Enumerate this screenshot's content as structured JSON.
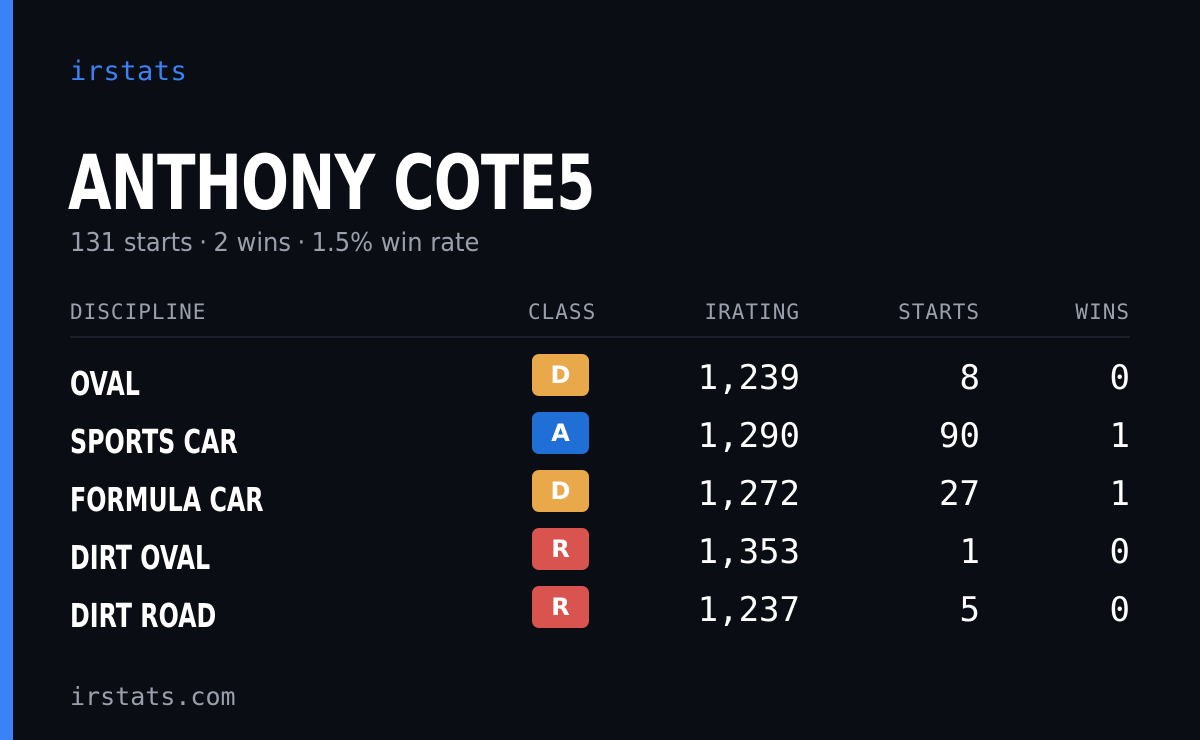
{
  "brand": "irstats",
  "driver": {
    "name": "ANTHONY COTE5",
    "starts_text": "131 starts",
    "wins_text": "2 wins",
    "win_rate_text": "1.5% win rate",
    "separator": "·"
  },
  "table": {
    "headers": {
      "discipline": "DISCIPLINE",
      "class": "CLASS",
      "irating": "IRATING",
      "starts": "STARTS",
      "wins": "WINS"
    },
    "rows": [
      {
        "discipline": "OVAL",
        "class": "D",
        "class_color": "#e9a94b",
        "irating": "1,239",
        "starts": "8",
        "wins": "0"
      },
      {
        "discipline": "SPORTS CAR",
        "class": "A",
        "class_color": "#1f6fd6",
        "irating": "1,290",
        "starts": "90",
        "wins": "1"
      },
      {
        "discipline": "FORMULA CAR",
        "class": "D",
        "class_color": "#e9a94b",
        "irating": "1,272",
        "starts": "27",
        "wins": "1"
      },
      {
        "discipline": "DIRT OVAL",
        "class": "R",
        "class_color": "#d9534f",
        "irating": "1,353",
        "starts": "1",
        "wins": "0"
      },
      {
        "discipline": "DIRT ROAD",
        "class": "R",
        "class_color": "#d9534f",
        "irating": "1,237",
        "starts": "5",
        "wins": "0"
      }
    ]
  },
  "footer": "irstats.com",
  "colors": {
    "background": "#0b0d14",
    "accent": "#3b82f6",
    "muted_text": "#9aa0ab"
  }
}
